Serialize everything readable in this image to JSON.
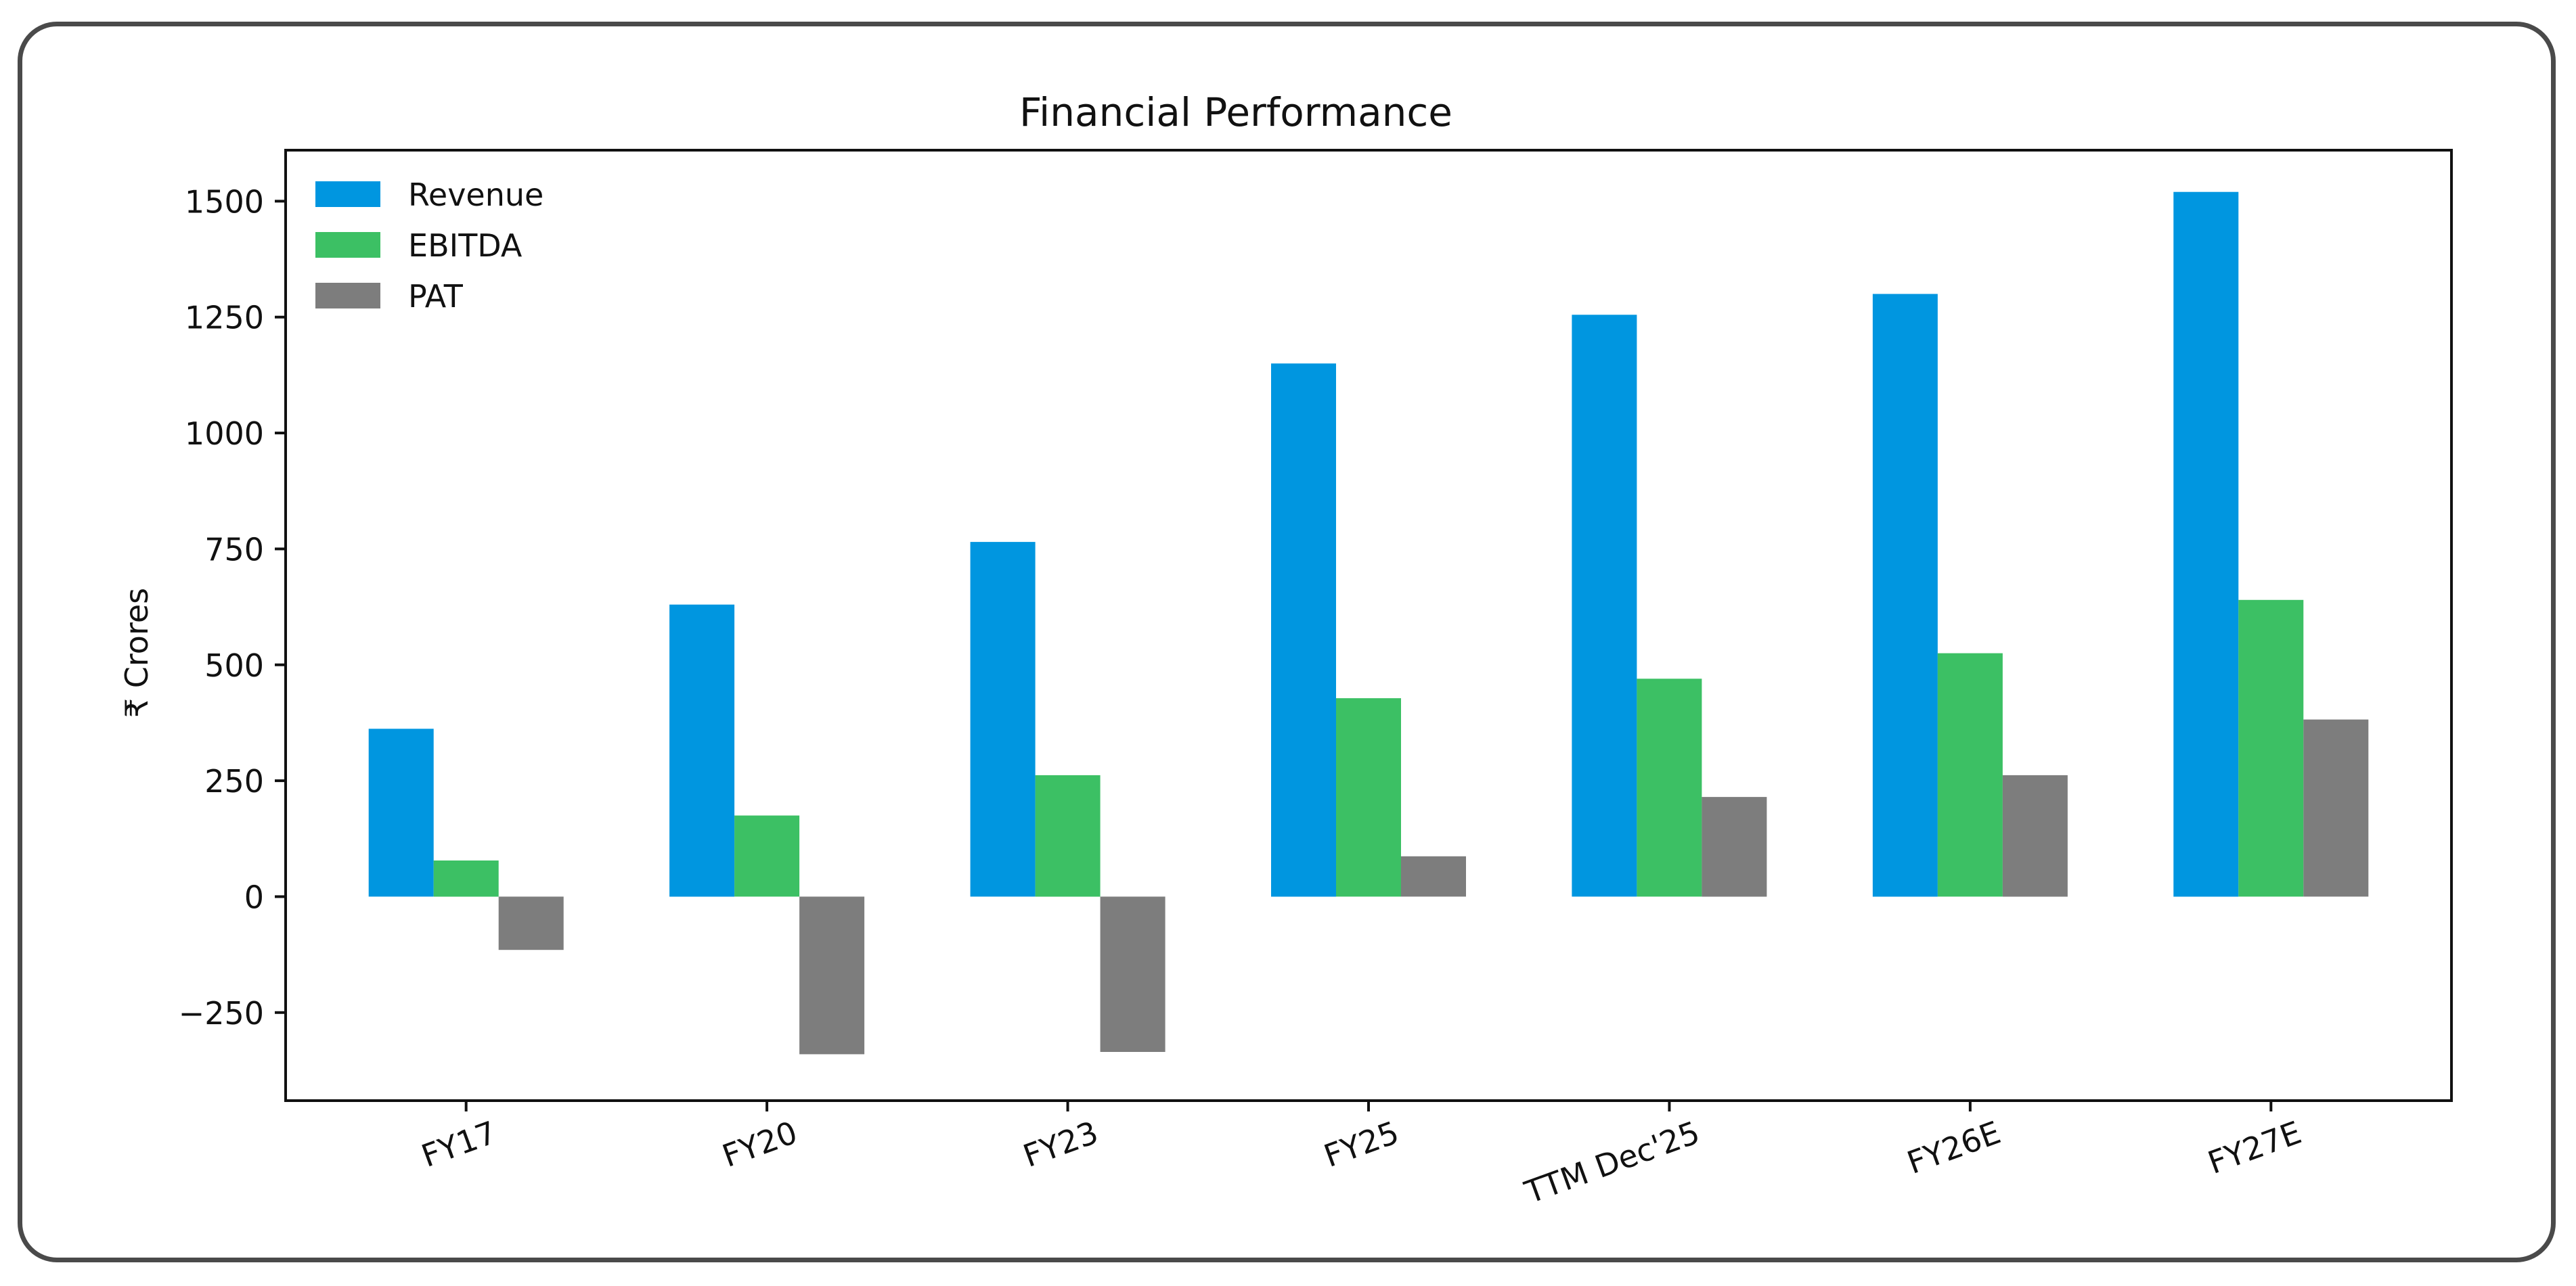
{
  "chart_data": {
    "type": "bar",
    "title": "Financial Performance",
    "xlabel": "",
    "ylabel": "₹ Crores",
    "categories": [
      "FY17",
      "FY20",
      "FY23",
      "FY25",
      "TTM Dec'25",
      "FY26E",
      "FY27E"
    ],
    "series": [
      {
        "name": "Revenue",
        "color": "#0096e0",
        "values": [
          362,
          630,
          765,
          1150,
          1255,
          1300,
          1520
        ]
      },
      {
        "name": "EBITDA",
        "color": "#3cc064",
        "values": [
          78,
          175,
          262,
          428,
          470,
          525,
          640
        ]
      },
      {
        "name": "PAT",
        "color": "#7d7d7d",
        "values": [
          -115,
          -340,
          -335,
          87,
          215,
          262,
          382
        ]
      }
    ],
    "ylim": [
      -440,
      1610
    ],
    "yticks": [
      -250,
      0,
      250,
      500,
      750,
      1000,
      1250,
      1500
    ],
    "ytick_labels": [
      "−250",
      "0",
      "250",
      "500",
      "750",
      "1000",
      "1250",
      "1500"
    ],
    "grid": false,
    "legend_position": "top-left",
    "xtick_rotation": "rotated"
  }
}
